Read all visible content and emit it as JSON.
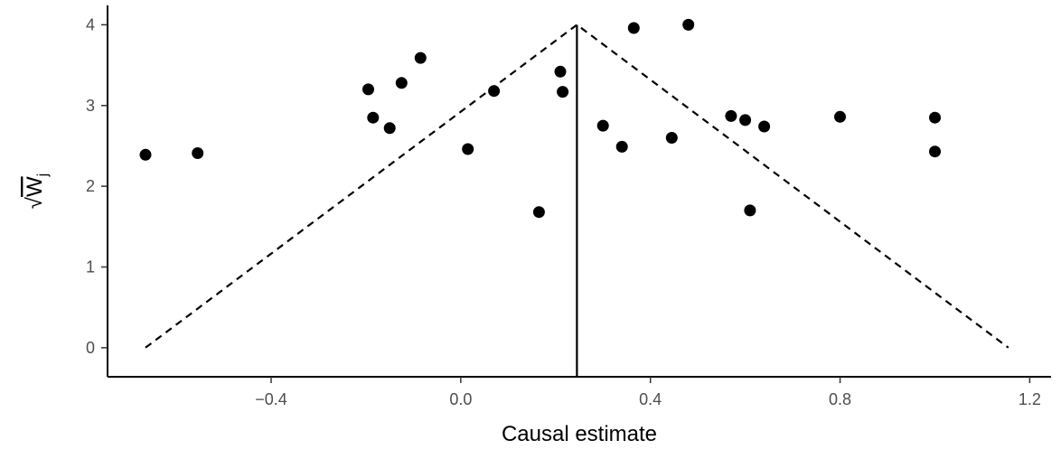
{
  "chart_data": {
    "type": "scatter",
    "title": "",
    "xlabel": "Causal estimate",
    "ylabel": "√W_j",
    "ylabel_parts": {
      "radical": "√",
      "base": "W",
      "sub": "j"
    },
    "xlim": [
      -0.745,
      1.245
    ],
    "ylim": [
      -0.36,
      4.24
    ],
    "x_ticks": [
      -0.4,
      0.0,
      0.4,
      0.8,
      1.2
    ],
    "x_tick_labels": [
      "−0.4",
      "0.0",
      "0.4",
      "0.8",
      "1.2"
    ],
    "y_ticks": [
      0,
      1,
      2,
      3,
      4
    ],
    "y_tick_labels": [
      "0",
      "1",
      "2",
      "3",
      "4"
    ],
    "grid": false,
    "legend": "none",
    "point_color": "#000000",
    "estimate_line": {
      "x": 0.245,
      "y_from": -0.36,
      "y_to": 4.0,
      "style": "solid"
    },
    "funnel": {
      "style": "dashed",
      "points": [
        [
          -0.665,
          0.0
        ],
        [
          0.245,
          4.0
        ],
        [
          1.155,
          0.0
        ]
      ]
    },
    "points": [
      {
        "x": -0.665,
        "y": 2.39
      },
      {
        "x": -0.555,
        "y": 2.41
      },
      {
        "x": -0.195,
        "y": 3.2
      },
      {
        "x": -0.185,
        "y": 2.85
      },
      {
        "x": -0.15,
        "y": 2.72
      },
      {
        "x": -0.125,
        "y": 3.28
      },
      {
        "x": -0.085,
        "y": 3.59
      },
      {
        "x": 0.015,
        "y": 2.46
      },
      {
        "x": 0.07,
        "y": 3.18
      },
      {
        "x": 0.165,
        "y": 1.68
      },
      {
        "x": 0.21,
        "y": 3.42
      },
      {
        "x": 0.215,
        "y": 3.17
      },
      {
        "x": 0.3,
        "y": 2.75
      },
      {
        "x": 0.34,
        "y": 2.49
      },
      {
        "x": 0.365,
        "y": 3.96
      },
      {
        "x": 0.445,
        "y": 2.6
      },
      {
        "x": 0.48,
        "y": 4.0
      },
      {
        "x": 0.57,
        "y": 2.87
      },
      {
        "x": 0.6,
        "y": 2.82
      },
      {
        "x": 0.61,
        "y": 1.7
      },
      {
        "x": 0.64,
        "y": 2.74
      },
      {
        "x": 0.8,
        "y": 2.86
      },
      {
        "x": 1.0,
        "y": 2.85
      },
      {
        "x": 1.0,
        "y": 2.43
      }
    ]
  }
}
